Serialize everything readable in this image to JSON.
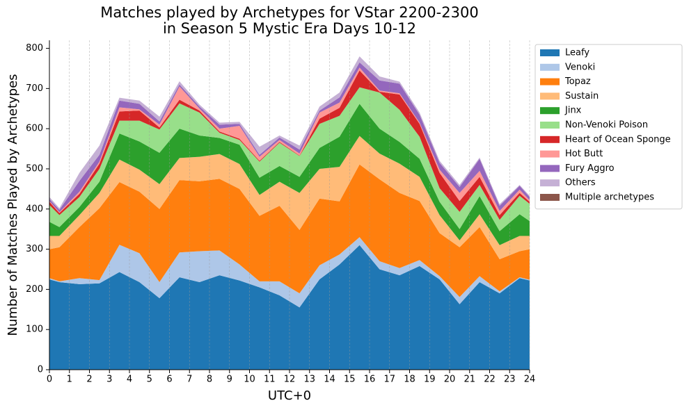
{
  "chart_data": {
    "type": "stacked_area",
    "title": [
      "Matches played by Archetypes for VStar 2200-2300",
      "in Season 5 Mystic Era Days 10-12"
    ],
    "xlabel": "UTC+0",
    "ylabel": "Number of Matches Played by Archetypes",
    "x": [
      0,
      0.5,
      1.5,
      2.5,
      3.5,
      4.5,
      5.5,
      6.5,
      7.5,
      8.5,
      9.5,
      10.5,
      11.5,
      12.5,
      13.5,
      14.5,
      15.5,
      16.5,
      17.5,
      18.5,
      19.5,
      20.5,
      21.5,
      22.5,
      23.5,
      24
    ],
    "xlim": [
      0,
      24
    ],
    "xticks": [
      0,
      1,
      2,
      3,
      4,
      5,
      6,
      7,
      8,
      9,
      10,
      11,
      12,
      13,
      14,
      15,
      16,
      17,
      18,
      19,
      20,
      21,
      22,
      23,
      24
    ],
    "ylim": [
      0,
      820
    ],
    "yticks": [
      0,
      100,
      200,
      300,
      400,
      500,
      600,
      700,
      800
    ],
    "grid": "x",
    "legend": "outside-upper-right",
    "series": [
      {
        "name": "Leafy",
        "color": "#1f77b4",
        "values": [
          225,
          218,
          213,
          215,
          243,
          218,
          178,
          230,
          218,
          235,
          222,
          205,
          185,
          155,
          225,
          262,
          310,
          250,
          235,
          258,
          225,
          163,
          218,
          190,
          228,
          222
        ]
      },
      {
        "name": "Venoki",
        "color": "#aec7e8",
        "values": [
          3,
          2,
          15,
          8,
          68,
          72,
          40,
          62,
          77,
          62,
          40,
          15,
          35,
          35,
          35,
          25,
          20,
          20,
          18,
          15,
          8,
          18,
          15,
          5,
          2,
          2
        ]
      },
      {
        "name": "Topaz",
        "color": "#ff7f0e",
        "values": [
          72,
          85,
          127,
          179,
          156,
          153,
          182,
          180,
          174,
          178,
          188,
          163,
          188,
          158,
          166,
          132,
          181,
          204,
          187,
          147,
          107,
          124,
          122,
          80,
          65,
          76
        ]
      },
      {
        "name": "Sustain",
        "color": "#ffbb78",
        "values": [
          33,
          28,
          30,
          38,
          56,
          55,
          62,
          55,
          61,
          62,
          62,
          52,
          60,
          92,
          74,
          86,
          71,
          64,
          73,
          60,
          45,
          17,
          32,
          35,
          38,
          33
        ]
      },
      {
        "name": "Jinx",
        "color": "#2ca02c",
        "values": [
          35,
          22,
          20,
          28,
          65,
          70,
          78,
          73,
          53,
          40,
          48,
          43,
          39,
          40,
          52,
          75,
          80,
          62,
          54,
          45,
          33,
          28,
          45,
          35,
          54,
          37
        ]
      },
      {
        "name": "Non-Venoki Poison",
        "color": "#98df8a",
        "values": [
          42,
          30,
          25,
          32,
          32,
          52,
          58,
          63,
          57,
          13,
          12,
          40,
          58,
          52,
          60,
          52,
          41,
          90,
          80,
          55,
          34,
          43,
          28,
          28,
          46,
          43
        ]
      },
      {
        "name": "Heart of Ocean Sponge",
        "color": "#d62728",
        "values": [
          8,
          5,
          8,
          13,
          23,
          25,
          5,
          9,
          5,
          3,
          3,
          2,
          2,
          1,
          13,
          20,
          42,
          2,
          38,
          32,
          38,
          27,
          20,
          12,
          7,
          5
        ]
      },
      {
        "name": "Hot Butt",
        "color": "#ff9896",
        "values": [
          2,
          2,
          5,
          5,
          10,
          3,
          7,
          33,
          5,
          7,
          32,
          10,
          5,
          5,
          15,
          13,
          7,
          3,
          3,
          3,
          8,
          20,
          15,
          10,
          8,
          4
        ]
      },
      {
        "name": "Fury Aggro",
        "color": "#9467bd",
        "values": [
          5,
          6,
          27,
          17,
          17,
          14,
          8,
          5,
          5,
          10,
          5,
          5,
          6,
          10,
          5,
          13,
          13,
          25,
          24,
          20,
          17,
          15,
          30,
          13,
          10,
          8
        ]
      },
      {
        "name": "Others",
        "color": "#c5b0d5",
        "values": [
          5,
          4,
          20,
          23,
          7,
          8,
          12,
          8,
          5,
          5,
          5,
          20,
          5,
          10,
          10,
          12,
          15,
          10,
          5,
          5,
          5,
          5,
          3,
          4,
          2,
          3
        ]
      },
      {
        "name": "Multiple archetypes",
        "color": "#8c564b",
        "values": [
          0,
          0,
          0,
          0,
          0,
          0,
          0,
          0,
          0,
          0,
          0,
          0,
          0,
          0,
          0,
          0,
          0,
          0,
          0,
          0,
          0,
          0,
          0,
          0,
          0,
          0
        ]
      }
    ]
  }
}
